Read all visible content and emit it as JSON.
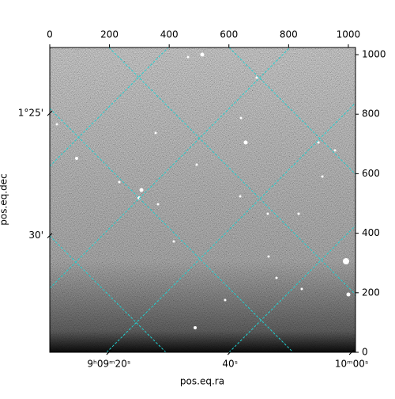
{
  "chart_data": {
    "type": "image",
    "xlabel": "pos.eq.ra",
    "ylabel": "pos.eq.dec",
    "xlim": [
      0,
      1024
    ],
    "ylim": [
      0,
      1024
    ],
    "xticks": [
      0,
      200,
      400,
      600,
      800,
      1000
    ],
    "yticks": [
      0,
      200,
      400,
      600,
      800,
      1000
    ],
    "raticks": [
      {
        "value": 198,
        "label": "9ʰ09ᵐ20ˢ"
      },
      {
        "value": 604,
        "label": "40ˢ"
      },
      {
        "value": 1011,
        "label": "10ᵐ00ˢ"
      }
    ],
    "decticks": [
      {
        "value": 803,
        "label": "1°25'"
      },
      {
        "value": 392,
        "label": "30'"
      }
    ],
    "grid": true,
    "grid_color": "#20d0d0",
    "cmap": "gray"
  }
}
